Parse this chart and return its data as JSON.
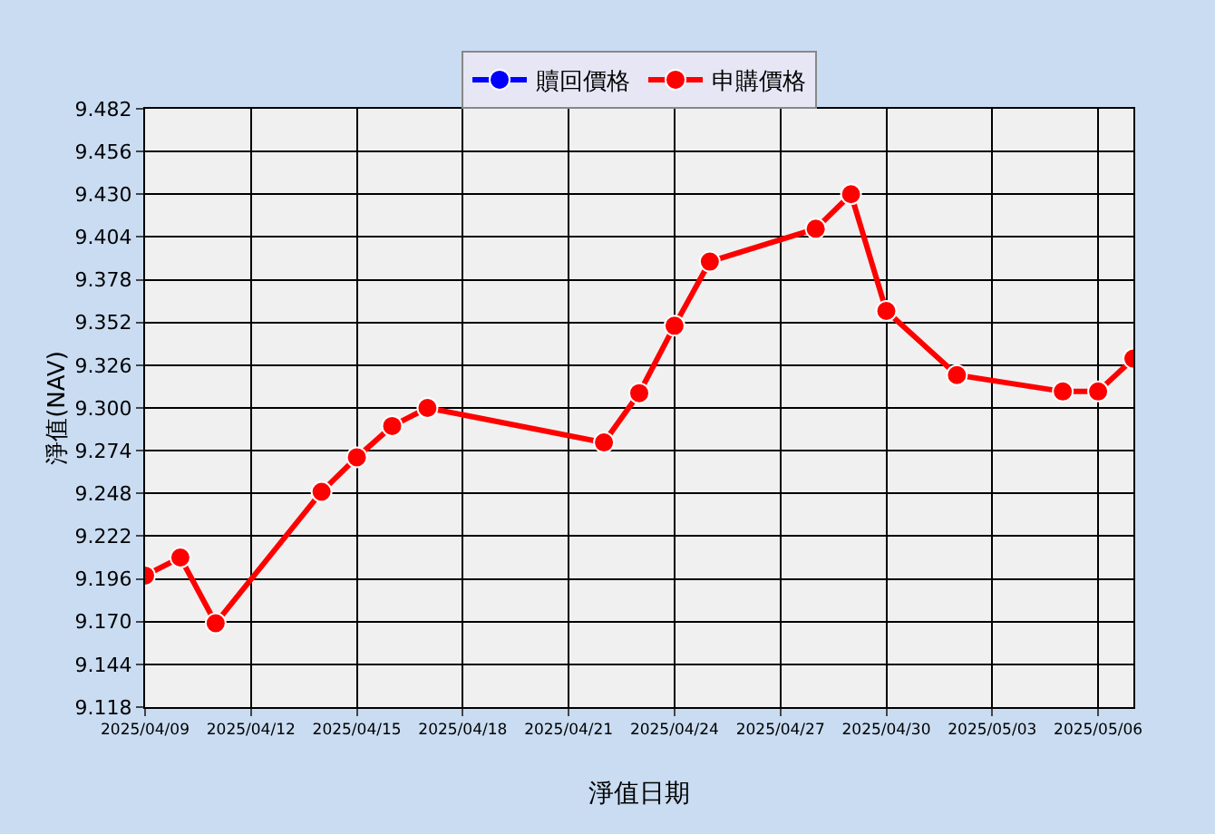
{
  "chart_data": {
    "type": "line",
    "xlabel": "淨值日期",
    "ylabel": "淨值(NAV)",
    "x": [
      "2025-04-09",
      "2025-04-10",
      "2025-04-11",
      "2025-04-14",
      "2025-04-15",
      "2025-04-16",
      "2025-04-17",
      "2025-04-22",
      "2025-04-23",
      "2025-04-24",
      "2025-04-25",
      "2025-04-28",
      "2025-04-29",
      "2025-04-30",
      "2025-05-02",
      "2025-05-05",
      "2025-05-06",
      "2025-05-07"
    ],
    "series": [
      {
        "name": "贖回價格",
        "color": "#0000ff",
        "values": [
          null,
          null,
          null,
          null,
          null,
          null,
          null,
          null,
          null,
          null,
          null,
          null,
          null,
          null,
          null,
          null,
          null,
          null
        ]
      },
      {
        "name": "申購價格",
        "color": "#ff0000",
        "values": [
          9.198,
          9.209,
          9.169,
          9.249,
          9.27,
          9.289,
          9.3,
          9.279,
          9.309,
          9.35,
          9.389,
          9.409,
          9.43,
          9.359,
          9.32,
          9.31,
          9.31,
          9.33
        ]
      }
    ],
    "xlim": [
      "2025-04-09",
      "2025-05-07"
    ],
    "xticks": [
      {
        "value": "2025-04-09",
        "label": "2025/04/09"
      },
      {
        "value": "2025-04-12",
        "label": "2025/04/12"
      },
      {
        "value": "2025-04-15",
        "label": "2025/04/15"
      },
      {
        "value": "2025-04-18",
        "label": "2025/04/18"
      },
      {
        "value": "2025-04-21",
        "label": "2025/04/21"
      },
      {
        "value": "2025-04-24",
        "label": "2025/04/24"
      },
      {
        "value": "2025-04-27",
        "label": "2025/04/27"
      },
      {
        "value": "2025-04-30",
        "label": "2025/04/30"
      },
      {
        "value": "2025-05-03",
        "label": "2025/05/03"
      },
      {
        "value": "2025-05-06",
        "label": "2025/05/06"
      }
    ],
    "ylim": [
      9.118,
      9.482
    ],
    "yticks": [
      9.118,
      9.144,
      {
        "value": 9.17,
        "label": "9.170"
      },
      9.196,
      9.222,
      9.248,
      9.274,
      {
        "value": 9.3,
        "label": "9.300"
      },
      9.326,
      9.352,
      9.378,
      9.404,
      {
        "value": 9.43,
        "label": "9.430"
      },
      9.456,
      9.482
    ],
    "grid": true,
    "legend": "top",
    "marker": "circle",
    "line_style": "solid"
  }
}
